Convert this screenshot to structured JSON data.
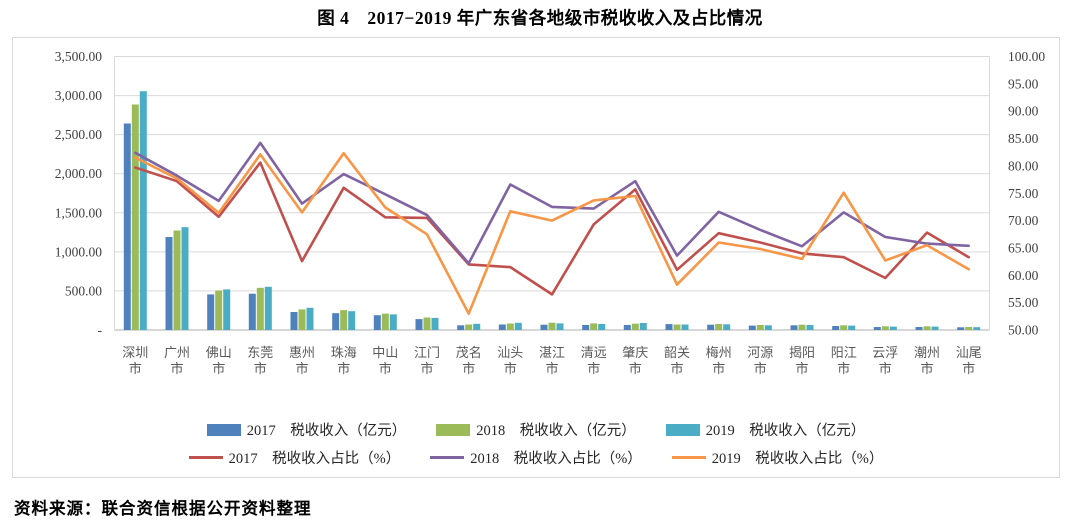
{
  "title": "图 4　2017−2019 年广东省各地级市税收收入及占比情况",
  "source_note": "资料来源：联合资信根据公开资料整理",
  "chart_data": {
    "type": "bar+line combo",
    "categories": [
      "深圳市",
      "广州市",
      "佛山市",
      "东莞市",
      "惠州市",
      "珠海市",
      "中山市",
      "江门市",
      "茂名市",
      "汕头市",
      "湛江市",
      "清远市",
      "肇庆市",
      "韶关市",
      "梅州市",
      "河源市",
      "揭阳市",
      "阳江市",
      "云浮市",
      "潮州市",
      "汕尾市"
    ],
    "bar_series": [
      {
        "name": "2017　税收收入（亿元）",
        "color": "#4F81BD",
        "axis": "left",
        "values": [
          2642,
          1190,
          455,
          465,
          230,
          215,
          190,
          140,
          60,
          70,
          68,
          64,
          64,
          75,
          68,
          56,
          60,
          51,
          38,
          38,
          34
        ]
      },
      {
        "name": "2018　税收收入（亿元）",
        "color": "#9BBB59",
        "axis": "left",
        "values": [
          2886,
          1273,
          505,
          540,
          263,
          255,
          210,
          160,
          70,
          83,
          94,
          85,
          81,
          70,
          77,
          64,
          68,
          60,
          47,
          47,
          38
        ]
      },
      {
        "name": "2019　税收收入（亿元）",
        "color": "#4BACC6",
        "axis": "left",
        "values": [
          3056,
          1316,
          520,
          553,
          284,
          240,
          200,
          155,
          79,
          92,
          85,
          77,
          90,
          70,
          73,
          60,
          64,
          56,
          43,
          43,
          36
        ]
      }
    ],
    "line_series": [
      {
        "name": "2017　税收收入占比（%）",
        "color": "#C0504D",
        "axis": "right",
        "values": [
          79.7,
          77.2,
          70.7,
          80.6,
          62.6,
          76.0,
          70.6,
          70.5,
          62.0,
          61.5,
          56.5,
          69.3,
          75.7,
          61.0,
          67.7,
          66.0,
          64.0,
          63.3,
          59.5,
          67.8,
          63.3
        ]
      },
      {
        "name": "2018　税收收入占比（%）",
        "color": "#8064A2",
        "axis": "right",
        "values": [
          82.4,
          78.2,
          73.6,
          84.2,
          73.1,
          78.5,
          74.8,
          71.0,
          62.2,
          76.6,
          72.5,
          72.2,
          77.2,
          63.6,
          71.6,
          68.3,
          65.3,
          71.5,
          67.0,
          65.8,
          65.4
        ]
      },
      {
        "name": "2019　税收收入占比（%）",
        "color": "#F79646",
        "axis": "right",
        "values": [
          81.5,
          77.7,
          71.4,
          82.1,
          71.5,
          82.3,
          72.4,
          67.5,
          53.0,
          71.7,
          70.0,
          73.7,
          74.5,
          58.3,
          66.0,
          64.8,
          63.0,
          75.1,
          62.7,
          65.5,
          61.1
        ]
      }
    ],
    "left_axis": {
      "min": 0,
      "max": 3500,
      "step": 500,
      "ticks": [
        "3,500.00",
        "3,000.00",
        "2,500.00",
        "2,000.00",
        "1,500.00",
        "1,000.00",
        "500.00",
        "-"
      ]
    },
    "right_axis": {
      "min": 50,
      "max": 100,
      "step": 5,
      "ticks": [
        "100.00",
        "95.00",
        "90.00",
        "85.00",
        "80.00",
        "75.00",
        "70.00",
        "65.00",
        "60.00",
        "55.00",
        "50.00"
      ]
    },
    "grid": "horizontal",
    "legend_position": "bottom",
    "colors": {
      "grid_line": "#d9d9d9",
      "axis_line": "#bfbfbf",
      "tick_text": "#404040",
      "category_text": "#595959"
    }
  }
}
